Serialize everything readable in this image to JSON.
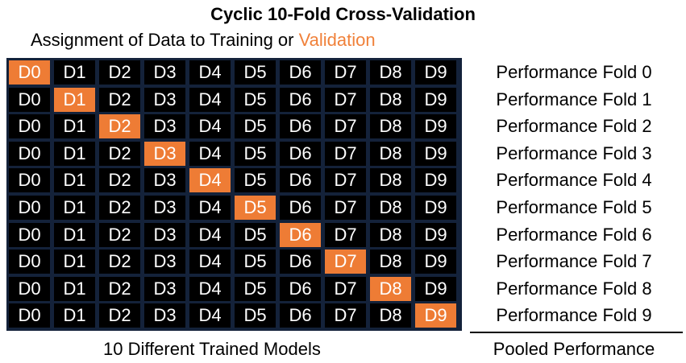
{
  "title": "Cyclic 10-Fold Cross-Validation",
  "subtitle": {
    "prefix": "Assignment of Data to Training or ",
    "highlight": "Validation"
  },
  "colors": {
    "validation": "#ee7c35",
    "training": "#000000",
    "grid_border": "#14223a",
    "text_on_cells": "#ffffff"
  },
  "data_blocks": [
    "D0",
    "D1",
    "D2",
    "D3",
    "D4",
    "D5",
    "D6",
    "D7",
    "D8",
    "D9"
  ],
  "folds": [
    {
      "validation_index": 0,
      "label": "Performance Fold 0"
    },
    {
      "validation_index": 1,
      "label": "Performance Fold 1"
    },
    {
      "validation_index": 2,
      "label": "Performance Fold 2"
    },
    {
      "validation_index": 3,
      "label": "Performance Fold 3"
    },
    {
      "validation_index": 4,
      "label": "Performance Fold 4"
    },
    {
      "validation_index": 5,
      "label": "Performance Fold 5"
    },
    {
      "validation_index": 6,
      "label": "Performance Fold 6"
    },
    {
      "validation_index": 7,
      "label": "Performance Fold 7"
    },
    {
      "validation_index": 8,
      "label": "Performance Fold 8"
    },
    {
      "validation_index": 9,
      "label": "Performance Fold 9"
    }
  ],
  "footer": {
    "models": "10 Different Trained Models",
    "pooled": "Pooled Performance"
  }
}
